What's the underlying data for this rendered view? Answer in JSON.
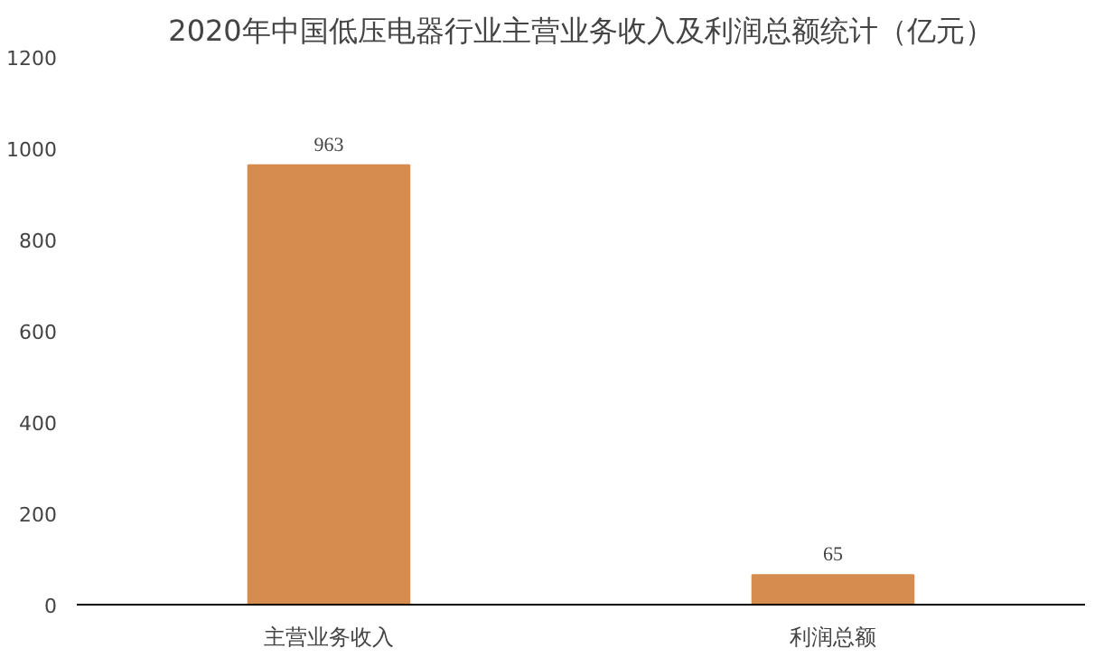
{
  "chart_data": {
    "type": "bar",
    "title": "2020年中国低压电器行业主营业务收入及利润总额统计（亿元）",
    "categories": [
      "主营业务收入",
      "利润总额"
    ],
    "values": [
      963,
      65
    ],
    "color": "#d68c4e",
    "ylim": [
      0,
      1200
    ],
    "yticks": [
      0,
      200,
      400,
      600,
      800,
      1000,
      1200
    ],
    "data_labels": true
  }
}
